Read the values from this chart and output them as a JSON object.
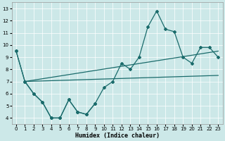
{
  "xlabel": "Humidex (Indice chaleur)",
  "xlim": [
    -0.5,
    23.5
  ],
  "ylim": [
    3.5,
    13.5
  ],
  "yticks": [
    4,
    5,
    6,
    7,
    8,
    9,
    10,
    11,
    12,
    13
  ],
  "xticks": [
    0,
    1,
    2,
    3,
    4,
    5,
    6,
    7,
    8,
    9,
    10,
    11,
    12,
    13,
    14,
    15,
    16,
    17,
    18,
    19,
    20,
    21,
    22,
    23
  ],
  "bg_color": "#cce8e8",
  "line_color": "#1a6b6b",
  "spiky_x": [
    0,
    1,
    2,
    3,
    4,
    5,
    6,
    7,
    8,
    9,
    10,
    11,
    12,
    13,
    14,
    15,
    16,
    17,
    18,
    19,
    20,
    21,
    22,
    23
  ],
  "spiky_y": [
    9.5,
    7.0,
    6.0,
    5.3,
    4.0,
    4.0,
    5.5,
    4.5,
    4.3,
    5.2,
    6.5,
    7.0,
    8.5,
    8.0,
    9.0,
    11.5,
    12.8,
    11.3,
    11.1,
    9.0,
    8.5,
    9.8,
    9.8,
    9.0
  ],
  "trend1_x": [
    1,
    23
  ],
  "trend1_y": [
    7.0,
    9.5
  ],
  "trend2_x": [
    1,
    23
  ],
  "trend2_y": [
    7.0,
    7.5
  ],
  "bottom_x": [
    0,
    1,
    2,
    3,
    4,
    5,
    6,
    7,
    8,
    9
  ],
  "bottom_y": [
    9.5,
    7.0,
    6.0,
    5.3,
    4.0,
    4.0,
    5.5,
    4.5,
    4.3,
    5.2
  ]
}
